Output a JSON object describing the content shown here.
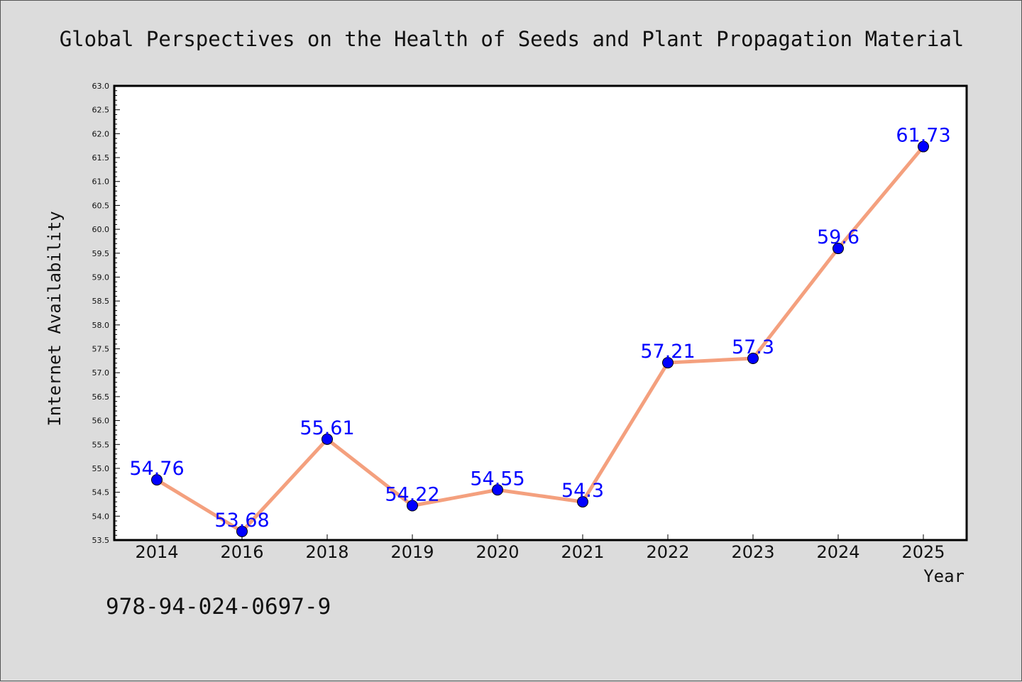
{
  "chart_data": {
    "type": "line",
    "title": "Global Perspectives on the Health of Seeds and Plant Propagation Material",
    "xlabel": "Year",
    "ylabel": "Internet Availability",
    "categories": [
      "2014",
      "2016",
      "2018",
      "2019",
      "2020",
      "2021",
      "2022",
      "2023",
      "2024",
      "2025"
    ],
    "values": [
      54.76,
      53.68,
      55.61,
      54.22,
      54.55,
      54.3,
      57.21,
      57.3,
      59.6,
      61.73
    ],
    "data_labels": [
      "54.76",
      "53.68",
      "55.61",
      "54.22",
      "54.55",
      "54.3",
      "57.21",
      "57.3",
      "59.6",
      "61.73"
    ],
    "ylim": [
      53.5,
      63.0
    ],
    "ytick_step": 0.5,
    "grid": false,
    "line_color": "#f4a07e",
    "marker_color": "#0000ff",
    "label_color": "#0000ff",
    "plot_background": "#ffffff",
    "figure_background": "#dcdcdc"
  },
  "footer": {
    "isbn": "978-94-024-0697-9"
  }
}
